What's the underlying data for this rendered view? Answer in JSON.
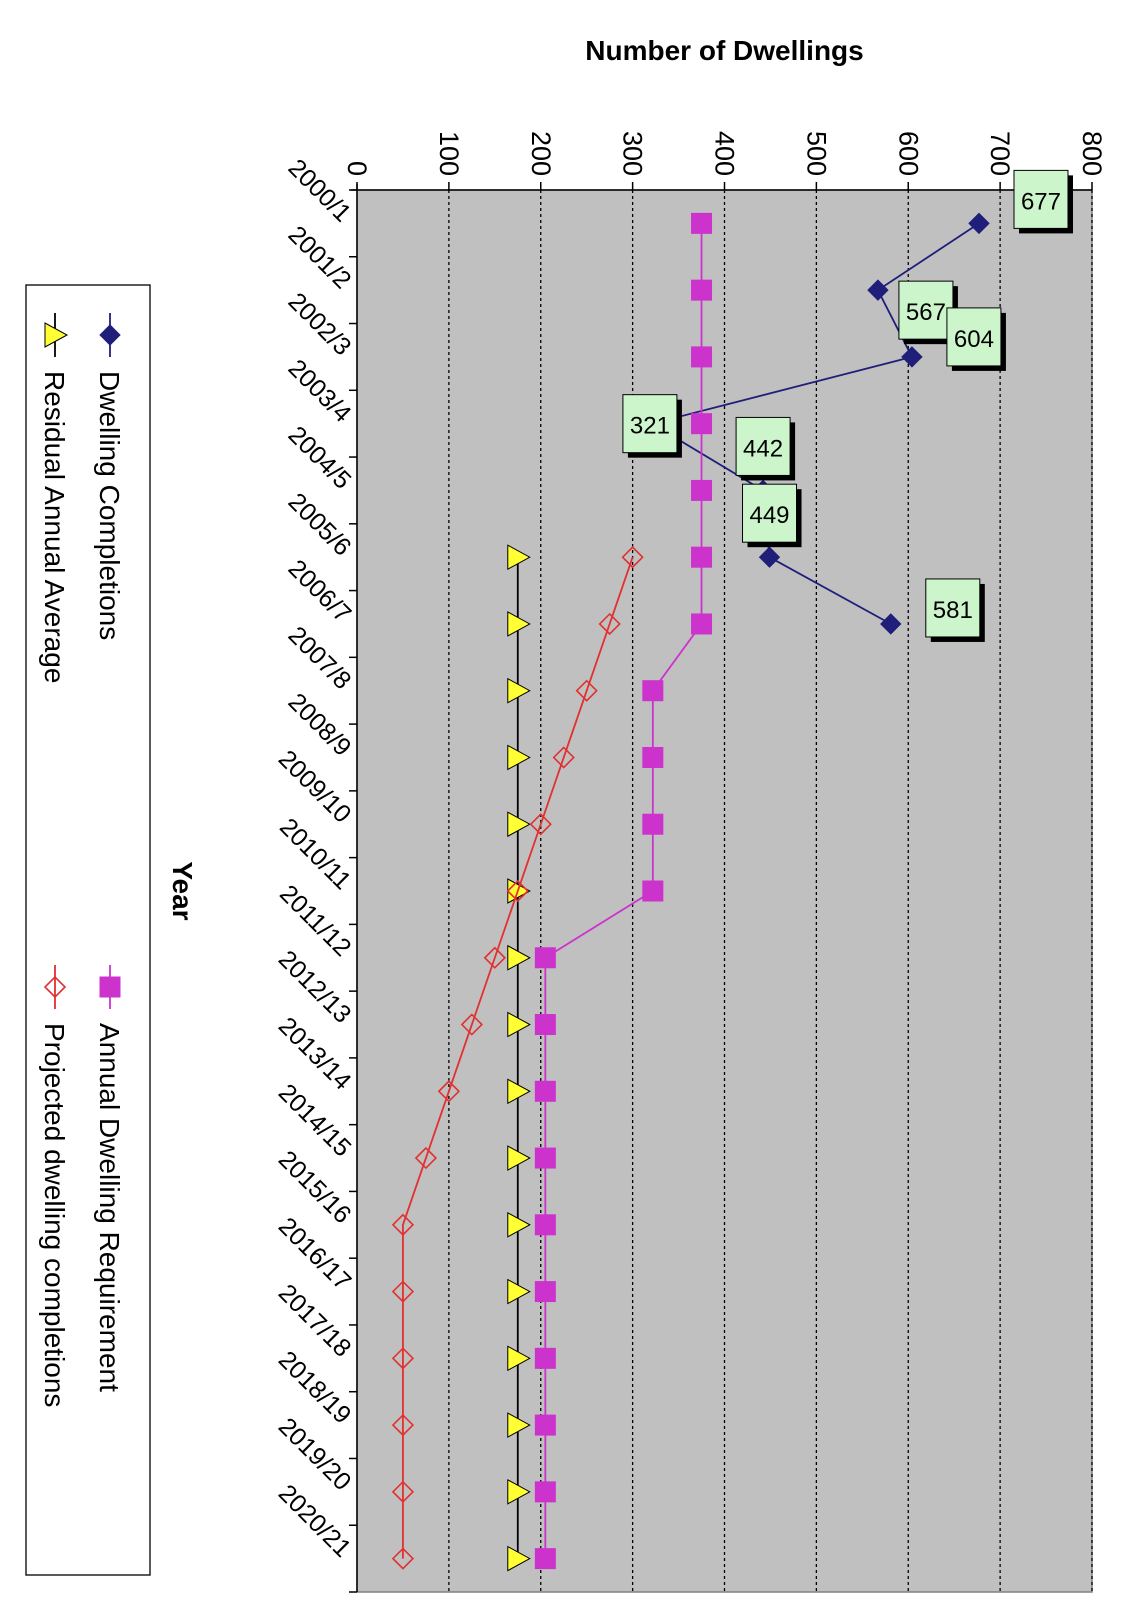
{
  "chart_data": {
    "type": "line",
    "xlabel": "Year",
    "ylabel": "Number of Dwellings",
    "ylim": [
      0,
      800
    ],
    "yticks": [
      0,
      100,
      200,
      300,
      400,
      500,
      600,
      700,
      800
    ],
    "grid": true,
    "legend_position": "bottom",
    "categories": [
      "2000/1",
      "2001/2",
      "2002/3",
      "2003/4",
      "2004/5",
      "2005/6",
      "2006/7",
      "2007/8",
      "2008/9",
      "2009/10",
      "2010/11",
      "2011/12",
      "2012/13",
      "2013/14",
      "2014/15",
      "2015/16",
      "2016/17",
      "2017/18",
      "2018/19",
      "2019/20",
      "2020/21"
    ],
    "series": [
      {
        "name": "Dwelling Completions",
        "color": "#1f1f7a",
        "marker": "diamond-filled",
        "values": [
          677,
          567,
          604,
          321,
          442,
          449,
          581,
          null,
          null,
          null,
          null,
          null,
          null,
          null,
          null,
          null,
          null,
          null,
          null,
          null,
          null
        ],
        "data_labels": [
          "677",
          "567",
          "604",
          "321",
          "442",
          "449",
          "581"
        ]
      },
      {
        "name": "Annual Dwelling Requirement",
        "color": "#cc33cc",
        "marker": "square-filled",
        "values": [
          375,
          375,
          375,
          375,
          375,
          375,
          375,
          322,
          322,
          322,
          322,
          205,
          205,
          205,
          205,
          205,
          205,
          205,
          205,
          205,
          205
        ]
      },
      {
        "name": "Residual Annual Average",
        "color": "#000000",
        "marker_color": "#ffff33",
        "marker": "triangle-filled",
        "values": [
          null,
          null,
          null,
          null,
          null,
          175,
          175,
          175,
          175,
          175,
          175,
          175,
          175,
          175,
          175,
          175,
          175,
          175,
          175,
          175,
          175
        ]
      },
      {
        "name": "Projected dwelling completions",
        "color": "#e23030",
        "marker": "diamond-open",
        "values": [
          null,
          null,
          null,
          null,
          null,
          300,
          275,
          250,
          225,
          200,
          175,
          150,
          125,
          100,
          75,
          50,
          50,
          50,
          50,
          50,
          50
        ]
      }
    ]
  }
}
